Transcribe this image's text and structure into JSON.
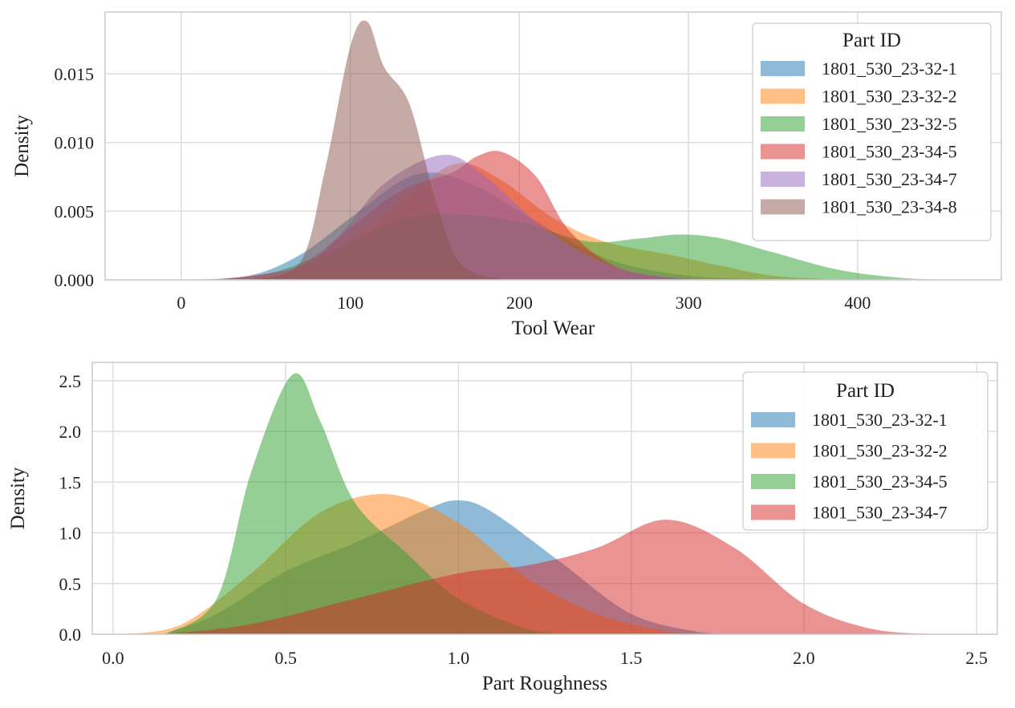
{
  "chart_data": [
    {
      "type": "area",
      "xlabel": "Tool Wear",
      "ylabel": "Density",
      "xlim": [
        -45,
        485
      ],
      "ylim": [
        0,
        0.0195
      ],
      "xticks": [
        0,
        100,
        200,
        300,
        400
      ],
      "xtick_labels": [
        "0",
        "100",
        "200",
        "300",
        "400"
      ],
      "yticks": [
        0,
        0.005,
        0.01,
        0.015
      ],
      "ytick_labels": [
        "0.000",
        "0.005",
        "0.010",
        "0.015"
      ],
      "grid": true,
      "legend": {
        "title": "Part ID",
        "placement": "top-right"
      },
      "series": [
        {
          "name": "1801_530_23-32-1",
          "color": "#1f77b4",
          "x": [
            0,
            40,
            70,
            100,
            130,
            150,
            175,
            200,
            230,
            260,
            300,
            340,
            380
          ],
          "y": [
            0,
            0.0003,
            0.0018,
            0.0045,
            0.0072,
            0.0078,
            0.0068,
            0.005,
            0.0028,
            0.0012,
            0.0003,
            5e-05,
            0
          ]
        },
        {
          "name": "1801_530_23-32-2",
          "color": "#ff7f0e",
          "x": [
            10,
            50,
            80,
            110,
            140,
            165,
            190,
            220,
            250,
            290,
            320,
            350,
            390
          ],
          "y": [
            0,
            0.0003,
            0.0013,
            0.0038,
            0.0068,
            0.0085,
            0.0072,
            0.0045,
            0.0028,
            0.0018,
            0.001,
            0.0003,
            0
          ]
        },
        {
          "name": "1801_530_23-32-5",
          "color": "#2ca02c",
          "x": [
            10,
            50,
            90,
            130,
            160,
            200,
            240,
            270,
            295,
            320,
            350,
            390,
            430,
            460
          ],
          "y": [
            0,
            0.0004,
            0.0022,
            0.0044,
            0.0048,
            0.0042,
            0.0028,
            0.003,
            0.0033,
            0.003,
            0.002,
            0.0007,
            0.0001,
            0
          ]
        },
        {
          "name": "1801_530_23-34-5",
          "color": "#d62728",
          "x": [
            20,
            70,
            100,
            130,
            160,
            175,
            190,
            210,
            230,
            260,
            300
          ],
          "y": [
            0,
            0.001,
            0.0038,
            0.0065,
            0.0078,
            0.009,
            0.0093,
            0.0075,
            0.0035,
            0.0008,
            0
          ]
        },
        {
          "name": "1801_530_23-34-7",
          "color": "#9467bd",
          "x": [
            20,
            60,
            90,
            120,
            155,
            180,
            210,
            240,
            270,
            310
          ],
          "y": [
            0,
            0.0006,
            0.0028,
            0.007,
            0.0091,
            0.0075,
            0.0042,
            0.0018,
            0.0005,
            0
          ]
        },
        {
          "name": "1801_530_23-34-8",
          "color": "#8c564b",
          "x": [
            40,
            70,
            85,
            100,
            110,
            120,
            135,
            150,
            165,
            190
          ],
          "y": [
            0,
            0.0012,
            0.008,
            0.017,
            0.0188,
            0.0155,
            0.0128,
            0.006,
            0.0012,
            0
          ]
        }
      ]
    },
    {
      "type": "area",
      "xlabel": "Part Roughness",
      "ylabel": "Density",
      "xlim": [
        -0.06,
        2.56
      ],
      "ylim": [
        0,
        2.68
      ],
      "xticks": [
        0,
        0.5,
        1,
        1.5,
        2,
        2.5
      ],
      "xtick_labels": [
        "0.0",
        "0.5",
        "1.0",
        "1.5",
        "2.0",
        "2.5"
      ],
      "yticks": [
        0,
        0.5,
        1,
        1.5,
        2,
        2.5
      ],
      "ytick_labels": [
        "0.0",
        "0.5",
        "1.0",
        "1.5",
        "2.0",
        "2.5"
      ],
      "grid": true,
      "legend": {
        "title": "Part ID",
        "placement": "top-right"
      },
      "series": [
        {
          "name": "1801_530_23-32-1",
          "color": "#1f77b4",
          "x": [
            0.15,
            0.3,
            0.5,
            0.7,
            0.9,
            1.0,
            1.1,
            1.3,
            1.5,
            1.7,
            1.8
          ],
          "y": [
            0,
            0.2,
            0.62,
            0.9,
            1.22,
            1.32,
            1.2,
            0.7,
            0.2,
            0.02,
            0
          ]
        },
        {
          "name": "1801_530_23-32-2",
          "color": "#ff7f0e",
          "x": [
            0.03,
            0.2,
            0.4,
            0.6,
            0.8,
            1.0,
            1.2,
            1.4,
            1.6,
            1.7
          ],
          "y": [
            0,
            0.1,
            0.6,
            1.2,
            1.38,
            1.1,
            0.55,
            0.2,
            0.03,
            0
          ]
        },
        {
          "name": "1801_530_23-34-5",
          "color": "#2ca02c",
          "x": [
            0.15,
            0.3,
            0.4,
            0.52,
            0.6,
            0.7,
            0.85,
            1.0,
            1.2,
            1.35
          ],
          "y": [
            0,
            0.35,
            1.6,
            2.56,
            2.1,
            1.3,
            0.8,
            0.35,
            0.05,
            0
          ]
        },
        {
          "name": "1801_530_23-34-7",
          "color": "#d62728",
          "x": [
            0.15,
            0.4,
            0.7,
            1.0,
            1.2,
            1.4,
            1.6,
            1.8,
            2.0,
            2.2,
            2.4
          ],
          "y": [
            0,
            0.1,
            0.35,
            0.6,
            0.68,
            0.85,
            1.13,
            0.85,
            0.3,
            0.05,
            0
          ]
        }
      ]
    }
  ]
}
